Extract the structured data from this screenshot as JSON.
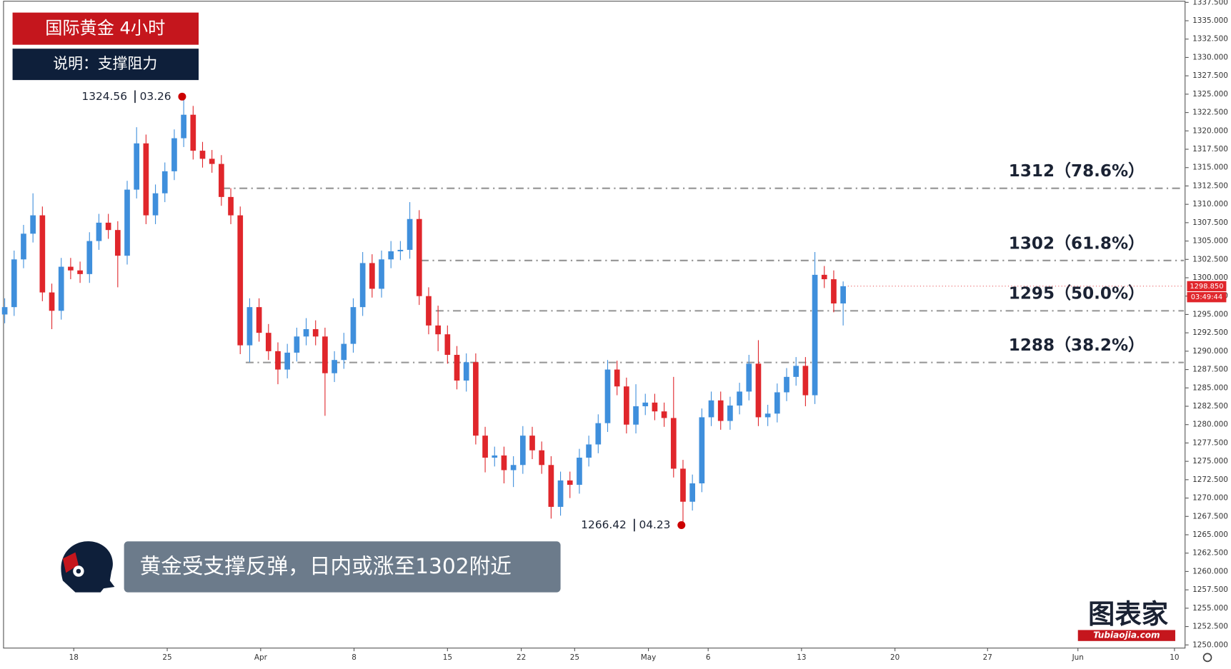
{
  "header": {
    "title": "国际黄金  4小时",
    "subtitle": "说明：支撑阻力"
  },
  "caption": "黄金受支撑反弹，日内或涨至1302附近",
  "logo": {
    "name": "图表家",
    "site": "Tubiaojia.com"
  },
  "chart_data": {
    "type": "candlestick",
    "up_color": "#3f8fdc",
    "down_color": "#e0262b",
    "grid": false,
    "xlim": [
      -0.5,
      125.17
    ],
    "xticks": [
      {
        "value": 7.33,
        "label": "18"
      },
      {
        "value": 17.25,
        "label": "25"
      },
      {
        "value": 27.17,
        "label": "Apr"
      },
      {
        "value": 37.08,
        "label": "8"
      },
      {
        "value": 47,
        "label": "15"
      },
      {
        "value": 54.83,
        "label": "22"
      },
      {
        "value": 60.5,
        "label": "25"
      },
      {
        "value": 68.33,
        "label": "May"
      },
      {
        "value": 74.67,
        "label": "6"
      },
      {
        "value": 84.58,
        "label": "13"
      },
      {
        "value": 94.5,
        "label": "20"
      },
      {
        "value": 104.33,
        "label": "27"
      },
      {
        "value": 113.92,
        "label": "Jun"
      },
      {
        "value": 124.17,
        "label": "10"
      }
    ],
    "ylim": [
      1249.57,
      1337.82
    ],
    "yticks": [
      {
        "value": 1250,
        "label": "1250.000"
      },
      {
        "value": 1252.5,
        "label": "1252.500"
      },
      {
        "value": 1255,
        "label": "1255.000"
      },
      {
        "value": 1257.5,
        "label": "1257.500"
      },
      {
        "value": 1260,
        "label": "1260.000"
      },
      {
        "value": 1262.5,
        "label": "1262.500"
      },
      {
        "value": 1265,
        "label": "1265.000"
      },
      {
        "value": 1267.5,
        "label": "1267.500"
      },
      {
        "value": 1270,
        "label": "1270.000"
      },
      {
        "value": 1272.5,
        "label": "1272.500"
      },
      {
        "value": 1275,
        "label": "1275.000"
      },
      {
        "value": 1277.5,
        "label": "1277.500"
      },
      {
        "value": 1280,
        "label": "1280.000"
      },
      {
        "value": 1282.5,
        "label": "1282.500"
      },
      {
        "value": 1285,
        "label": "1285.000"
      },
      {
        "value": 1287.5,
        "label": "1287.500"
      },
      {
        "value": 1290,
        "label": "1290.000"
      },
      {
        "value": 1292.5,
        "label": "1292.500"
      },
      {
        "value": 1295,
        "label": "1295.000"
      },
      {
        "value": 1297.5,
        "label": "1297.500"
      },
      {
        "value": 1300,
        "label": "1300.000"
      },
      {
        "value": 1302.5,
        "label": "1302.500"
      },
      {
        "value": 1305,
        "label": "1305.000"
      },
      {
        "value": 1307.5,
        "label": "1307.500"
      },
      {
        "value": 1310,
        "label": "1310.000"
      },
      {
        "value": 1312.5,
        "label": "1312.500"
      },
      {
        "value": 1315,
        "label": "1315.000"
      },
      {
        "value": 1317.5,
        "label": "1317.500"
      },
      {
        "value": 1320,
        "label": "1320.000"
      },
      {
        "value": 1322.5,
        "label": "1322.500"
      },
      {
        "value": 1325,
        "label": "1325.000"
      },
      {
        "value": 1327.5,
        "label": "1327.500"
      },
      {
        "value": 1330,
        "label": "1330.000"
      },
      {
        "value": 1332.5,
        "label": "1332.500"
      },
      {
        "value": 1335,
        "label": "1335.000"
      },
      {
        "value": 1337.5,
        "label": "1337.500"
      }
    ],
    "open": [
      1295.0,
      1296.0,
      1302.5,
      1306.0,
      1308.5,
      1298.0,
      1295.5,
      1301.5,
      1301.0,
      1300.5,
      1305.0,
      1307.5,
      1306.5,
      1303.0,
      1312.0,
      1318.3,
      1308.5,
      1311.5,
      1314.5,
      1319.0,
      1322.2,
      1317.3,
      1316.2,
      1315.5,
      1311.0,
      1308.5,
      1290.8,
      1296.0,
      1292.5,
      1290.0,
      1287.5,
      1289.8,
      1292.0,
      1293.0,
      1292.0,
      1287.0,
      1288.8,
      1291.0,
      1296.0,
      1302.0,
      1298.5,
      1302.5,
      1303.6,
      1303.8,
      1308.0,
      1297.5,
      1293.5,
      1292.3,
      1289.5,
      1286.0,
      1288.5,
      1278.5,
      1275.5,
      1275.8,
      1273.8,
      1274.5,
      1278.5,
      1276.5,
      1274.5,
      1268.8,
      1272.4,
      1271.8,
      1275.5,
      1277.3,
      1280.2,
      1287.5,
      1285.2,
      1280.0,
      1282.5,
      1283.0,
      1281.8,
      1280.9,
      1274.0,
      1269.5,
      1272.0,
      1281.0,
      1283.3,
      1280.5,
      1282.6,
      1284.5,
      1288.3,
      1281.0,
      1281.5,
      1284.4,
      1286.5,
      1288.0,
      1284.0,
      1300.4,
      1299.8,
      1296.5
    ],
    "high": [
      1297.2,
      1303.7,
      1307.2,
      1311.5,
      1309.7,
      1299.2,
      1302.7,
      1302.7,
      1302.2,
      1306.2,
      1308.7,
      1308.7,
      1307.7,
      1313.2,
      1320.5,
      1319.5,
      1312.7,
      1315.7,
      1320.2,
      1324.56,
      1323.4,
      1318.5,
      1317.4,
      1316.7,
      1312.2,
      1309.7,
      1297.2,
      1297.2,
      1293.7,
      1291.2,
      1291.0,
      1293.2,
      1294.5,
      1294.2,
      1293.2,
      1290.0,
      1292.5,
      1297.2,
      1303.5,
      1303.2,
      1303.7,
      1305.0,
      1305.0,
      1310.3,
      1309.2,
      1298.7,
      1296.2,
      1293.5,
      1290.7,
      1289.7,
      1289.7,
      1279.7,
      1277.0,
      1277.0,
      1275.7,
      1279.8,
      1279.7,
      1277.7,
      1275.7,
      1273.6,
      1273.6,
      1276.7,
      1278.5,
      1281.4,
      1288.8,
      1288.7,
      1286.4,
      1285.5,
      1284.2,
      1284.2,
      1283.0,
      1286.5,
      1275.2,
      1273.2,
      1282.2,
      1284.5,
      1284.5,
      1283.8,
      1285.7,
      1289.5,
      1291.5,
      1282.7,
      1285.6,
      1287.7,
      1289.2,
      1289.2,
      1303.5,
      1301.6,
      1301.0,
      1299.5
    ],
    "low": [
      1293.8,
      1294.8,
      1301.3,
      1304.8,
      1296.8,
      1293.0,
      1294.3,
      1299.8,
      1299.3,
      1299.3,
      1303.8,
      1305.3,
      1298.7,
      1301.8,
      1310.8,
      1307.3,
      1307.3,
      1310.3,
      1313.3,
      1317.8,
      1316.1,
      1315.0,
      1314.3,
      1309.8,
      1307.3,
      1289.6,
      1288.5,
      1291.3,
      1288.8,
      1285.5,
      1286.3,
      1288.6,
      1290.8,
      1290.8,
      1281.2,
      1285.8,
      1287.6,
      1289.8,
      1294.8,
      1297.3,
      1297.3,
      1301.3,
      1302.4,
      1302.6,
      1296.3,
      1292.3,
      1290.0,
      1288.3,
      1284.8,
      1284.5,
      1277.3,
      1273.5,
      1274.3,
      1272.0,
      1271.5,
      1273.3,
      1275.3,
      1273.3,
      1267.2,
      1267.6,
      1270.0,
      1270.6,
      1274.3,
      1276.1,
      1279.0,
      1284.0,
      1278.8,
      1278.8,
      1281.3,
      1280.6,
      1279.7,
      1272.8,
      1266.42,
      1268.3,
      1270.8,
      1279.8,
      1279.3,
      1279.3,
      1281.4,
      1283.3,
      1279.8,
      1279.8,
      1280.3,
      1283.2,
      1285.3,
      1282.5,
      1282.8,
      1298.6,
      1295.3,
      1293.5
    ],
    "close": [
      1296.0,
      1302.5,
      1306.0,
      1308.5,
      1298.0,
      1295.5,
      1301.5,
      1301.0,
      1300.5,
      1305.0,
      1307.5,
      1306.5,
      1303.0,
      1312.0,
      1318.3,
      1308.5,
      1311.5,
      1314.5,
      1319.0,
      1322.2,
      1317.3,
      1316.2,
      1315.5,
      1311.0,
      1308.5,
      1290.8,
      1296.0,
      1292.5,
      1290.0,
      1287.5,
      1289.8,
      1292.0,
      1293.0,
      1292.0,
      1287.0,
      1288.8,
      1291.0,
      1296.0,
      1302.0,
      1298.5,
      1302.5,
      1303.6,
      1303.8,
      1308.0,
      1297.5,
      1293.5,
      1292.3,
      1289.5,
      1286.0,
      1288.5,
      1278.5,
      1275.5,
      1275.8,
      1273.8,
      1274.5,
      1278.5,
      1276.5,
      1274.5,
      1268.8,
      1272.4,
      1271.8,
      1275.5,
      1277.3,
      1280.2,
      1287.5,
      1285.2,
      1280.0,
      1282.5,
      1283.0,
      1281.8,
      1280.9,
      1274.0,
      1269.5,
      1272.0,
      1281.0,
      1283.3,
      1280.5,
      1282.6,
      1284.5,
      1288.3,
      1281.0,
      1281.5,
      1284.4,
      1286.5,
      1288.0,
      1284.0,
      1300.4,
      1299.8,
      1296.5,
      1298.85
    ],
    "levels": [
      {
        "value": 1312.18,
        "label": "1312（78.6%）"
      },
      {
        "value": 1302.35,
        "label": "1302（61.8%）"
      },
      {
        "value": 1295.5,
        "label": "1295（50.0%）"
      },
      {
        "value": 1288.46,
        "label": "1288（38.2%）"
      }
    ],
    "annotations": [
      {
        "value": 1324.56,
        "date": "03.26"
      },
      {
        "value": 1266.42,
        "date": "04.23"
      }
    ],
    "last_price": {
      "value": 1298.85,
      "label": "1298.850",
      "countdown": "03:49:44"
    }
  }
}
